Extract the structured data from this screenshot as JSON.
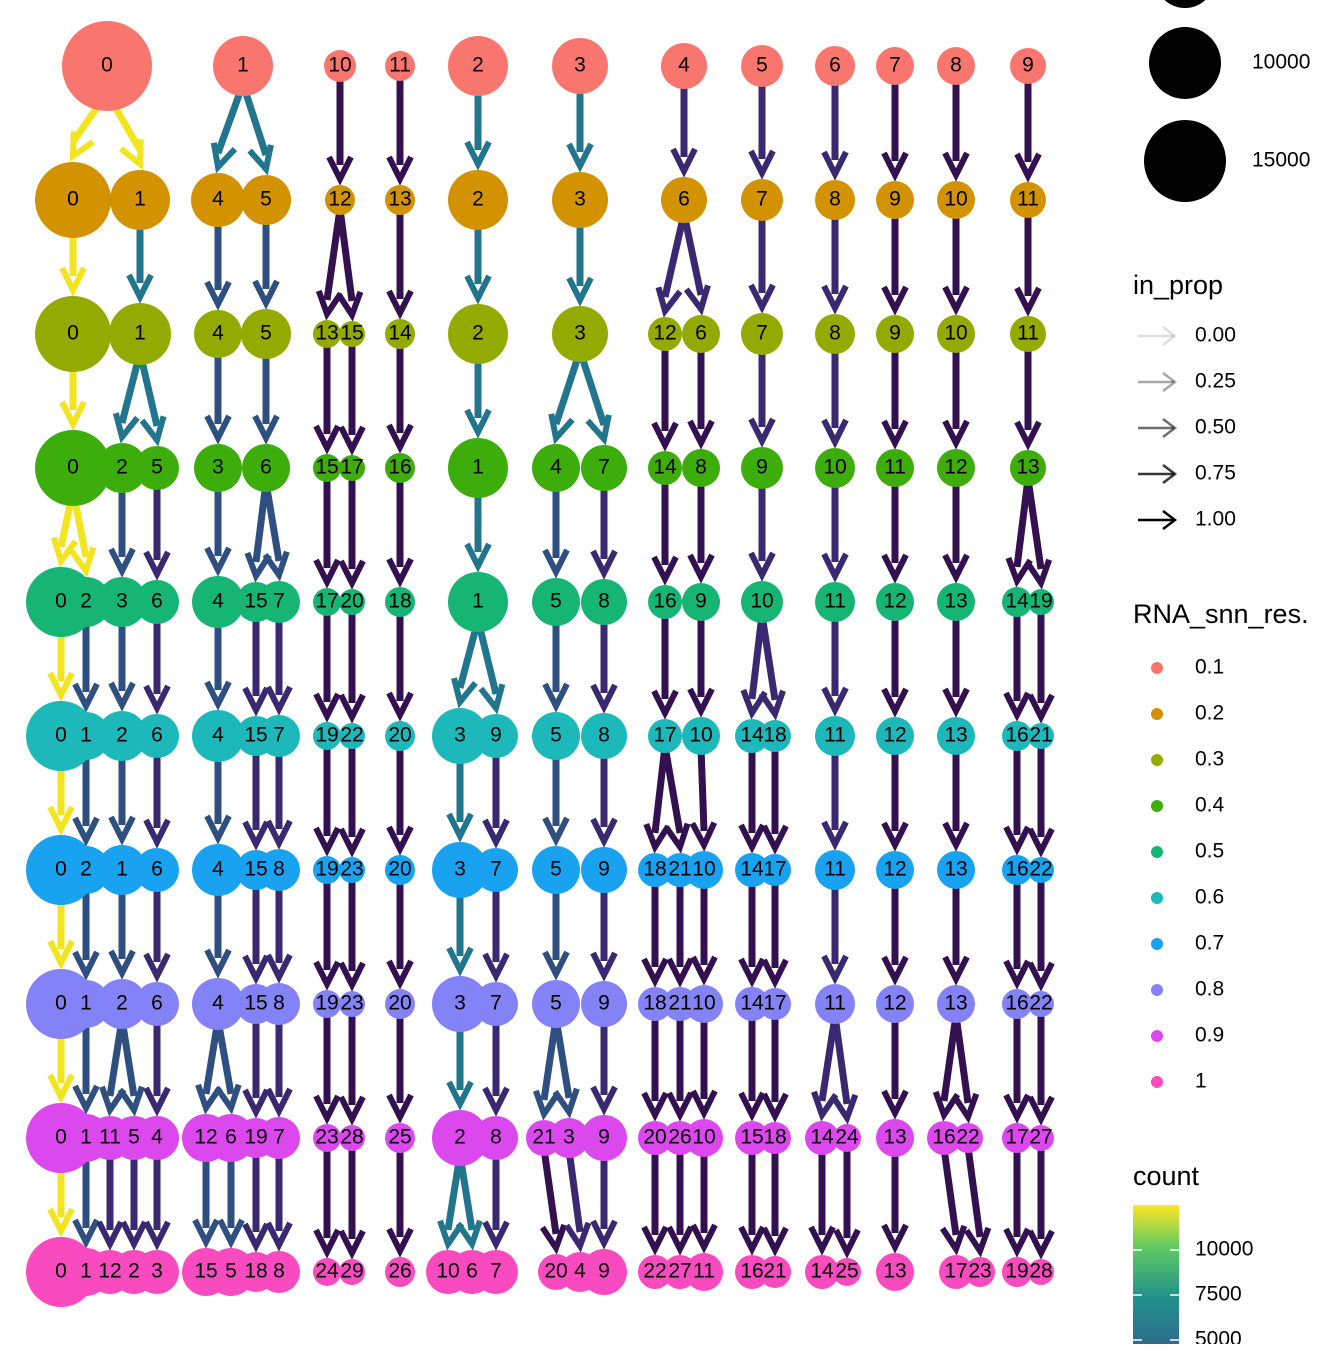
{
  "rows": [
    {
      "resolution": "0.1",
      "color": "#F8766D",
      "nodes": [
        "0",
        "1",
        "10",
        "11",
        "2",
        "3",
        "4",
        "5",
        "6",
        "7",
        "8",
        "9"
      ]
    },
    {
      "resolution": "0.2",
      "color": "#D39200",
      "nodes": [
        "0",
        "1",
        "4",
        "5",
        "12",
        "13",
        "2",
        "3",
        "6",
        "7",
        "8",
        "9",
        "10",
        "11"
      ]
    },
    {
      "resolution": "0.3",
      "color": "#93AA00",
      "nodes": [
        "0",
        "1",
        "4",
        "5",
        "13",
        "15",
        "14",
        "2",
        "3",
        "12",
        "6",
        "7",
        "8",
        "9",
        "10",
        "11"
      ]
    },
    {
      "resolution": "0.4",
      "color": "#3DAD0C",
      "nodes": [
        "0",
        "2",
        "5",
        "3",
        "6",
        "15",
        "17",
        "16",
        "1",
        "4",
        "7",
        "14",
        "8",
        "9",
        "10",
        "11",
        "12",
        "13"
      ]
    },
    {
      "resolution": "0.5",
      "color": "#17B574",
      "nodes": [
        "0",
        "2",
        "3",
        "6",
        "4",
        "15",
        "7",
        "17",
        "20",
        "18",
        "1",
        "5",
        "8",
        "16",
        "9",
        "10",
        "11",
        "12",
        "13",
        "14",
        "19"
      ]
    },
    {
      "resolution": "0.6",
      "color": "#1CB8BA",
      "nodes": [
        "0",
        "1",
        "2",
        "6",
        "4",
        "15",
        "7",
        "19",
        "22",
        "20",
        "3",
        "9",
        "5",
        "8",
        "17",
        "10",
        "14",
        "18",
        "11",
        "12",
        "13",
        "16",
        "21"
      ]
    },
    {
      "resolution": "0.7",
      "color": "#19A2F0",
      "nodes": [
        "0",
        "2",
        "1",
        "6",
        "4",
        "15",
        "8",
        "19",
        "23",
        "20",
        "3",
        "7",
        "5",
        "9",
        "18",
        "21",
        "10",
        "14",
        "17",
        "11",
        "12",
        "13",
        "16",
        "22"
      ]
    },
    {
      "resolution": "0.8",
      "color": "#8482F7",
      "nodes": [
        "0",
        "1",
        "2",
        "6",
        "4",
        "15",
        "8",
        "19",
        "23",
        "20",
        "3",
        "7",
        "5",
        "9",
        "18",
        "21",
        "10",
        "14",
        "17",
        "11",
        "12",
        "13",
        "16",
        "22"
      ]
    },
    {
      "resolution": "0.9",
      "color": "#DB48EE",
      "nodes": [
        "0",
        "1",
        "11",
        "5",
        "4",
        "12",
        "6",
        "19",
        "7",
        "23",
        "28",
        "25",
        "2",
        "8",
        "21",
        "3",
        "9",
        "20",
        "26",
        "10",
        "15",
        "18",
        "14",
        "24",
        "13",
        "16",
        "22",
        "17",
        "27"
      ]
    },
    {
      "resolution": "1",
      "color": "#F94BBF",
      "nodes": [
        "0",
        "1",
        "12",
        "2",
        "3",
        "15",
        "5",
        "18",
        "8",
        "24",
        "29",
        "26",
        "10",
        "6",
        "7",
        "20",
        "4",
        "9",
        "22",
        "27",
        "11",
        "16",
        "21",
        "14",
        "25",
        "13",
        "17",
        "23",
        "19",
        "28"
      ]
    }
  ],
  "legends": {
    "size": {
      "labels": [
        "10000",
        "15000"
      ]
    },
    "in_prop": {
      "title": "in_prop",
      "labels": [
        "0.00",
        "0.25",
        "0.50",
        "0.75",
        "1.00"
      ]
    },
    "resolution": {
      "title": "RNA_snn_res."
    },
    "count": {
      "title": "count",
      "labels": [
        "10000",
        "7500",
        "5000"
      ]
    }
  }
}
